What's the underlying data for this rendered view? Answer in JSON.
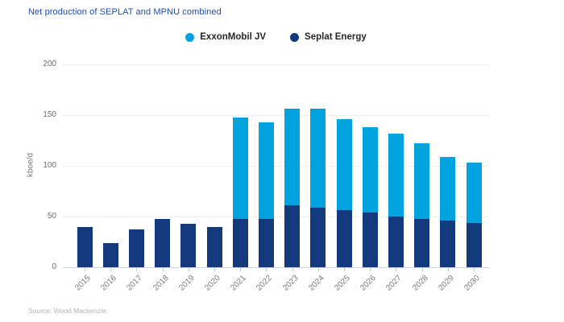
{
  "page": {
    "title": "Net production of SEPLAT and MPNU combined",
    "source": "Source: Wood Mackenzie"
  },
  "legend": [
    {
      "label": "ExxonMobil JV",
      "color": "#00A2DF"
    },
    {
      "label": "Seplat Energy",
      "color": "#123A7C"
    }
  ],
  "chart_data": {
    "type": "bar",
    "stacked": true,
    "title": "Net production of SEPLAT and MPNU combined",
    "ylabel": "kboe/d",
    "ylim": [
      0,
      200
    ],
    "yticks": [
      0,
      50,
      100,
      150,
      200
    ],
    "grid": true,
    "legend_position": "top-center",
    "categories": [
      "2015",
      "2016",
      "2017",
      "2018",
      "2019",
      "2020",
      "2021",
      "2022",
      "2023",
      "2024",
      "2025",
      "2026",
      "2027",
      "2028",
      "2029",
      "2030"
    ],
    "series": [
      {
        "name": "Seplat Energy",
        "color": "#123A7C",
        "values": [
          40,
          24,
          37,
          48,
          43,
          40,
          48,
          48,
          61,
          59,
          56,
          54,
          50,
          48,
          46,
          44
        ]
      },
      {
        "name": "ExxonMobil JV",
        "color": "#00A2DF",
        "values": [
          0,
          0,
          0,
          0,
          0,
          0,
          100,
          95,
          95,
          97,
          90,
          84,
          82,
          74,
          63,
          59
        ]
      }
    ]
  },
  "colors": {
    "title": "#1E4CA8",
    "axis_line": "#C9D3EA",
    "gridline": "#EDEDED",
    "tick": "#B9C6E6"
  }
}
